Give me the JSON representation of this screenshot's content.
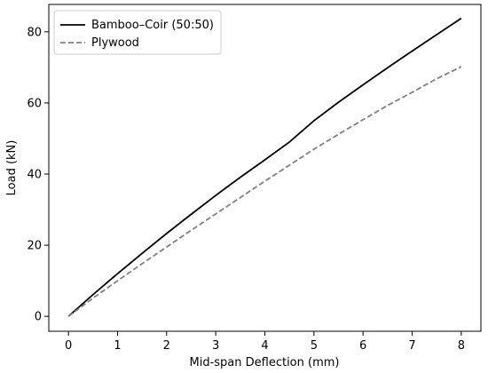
{
  "chart_data": {
    "type": "line",
    "title": "",
    "xlabel": "Mid-span Deflection (mm)",
    "ylabel": "Load (kN)",
    "xlim": [
      -0.4,
      8.4
    ],
    "ylim": [
      -4.2,
      87.7
    ],
    "xticks": [
      0,
      1,
      2,
      3,
      4,
      5,
      6,
      7,
      8
    ],
    "yticks": [
      0,
      20,
      40,
      60,
      80
    ],
    "grid": false,
    "legend_position": "top-left",
    "x": [
      0,
      0.5,
      1,
      1.5,
      2,
      2.5,
      3,
      3.5,
      4,
      4.5,
      5,
      5.5,
      6,
      6.5,
      7,
      7.5,
      8
    ],
    "series": [
      {
        "name": "Bamboo–Coir (50:50)",
        "color": "#000000",
        "style": "solid",
        "values": [
          0,
          6.1,
          12.0,
          17.7,
          23.3,
          28.7,
          34.0,
          39.1,
          44.0,
          49.0,
          55.0,
          60.2,
          65.1,
          69.9,
          74.6,
          79.2,
          83.8
        ]
      },
      {
        "name": "Plywood",
        "color": "#808080",
        "style": "dashed",
        "values": [
          0,
          5.1,
          10.0,
          14.8,
          19.5,
          24.2,
          28.8,
          33.4,
          38.0,
          42.5,
          47.0,
          51.2,
          55.3,
          59.3,
          63.0,
          66.8,
          70.2
        ]
      }
    ]
  }
}
